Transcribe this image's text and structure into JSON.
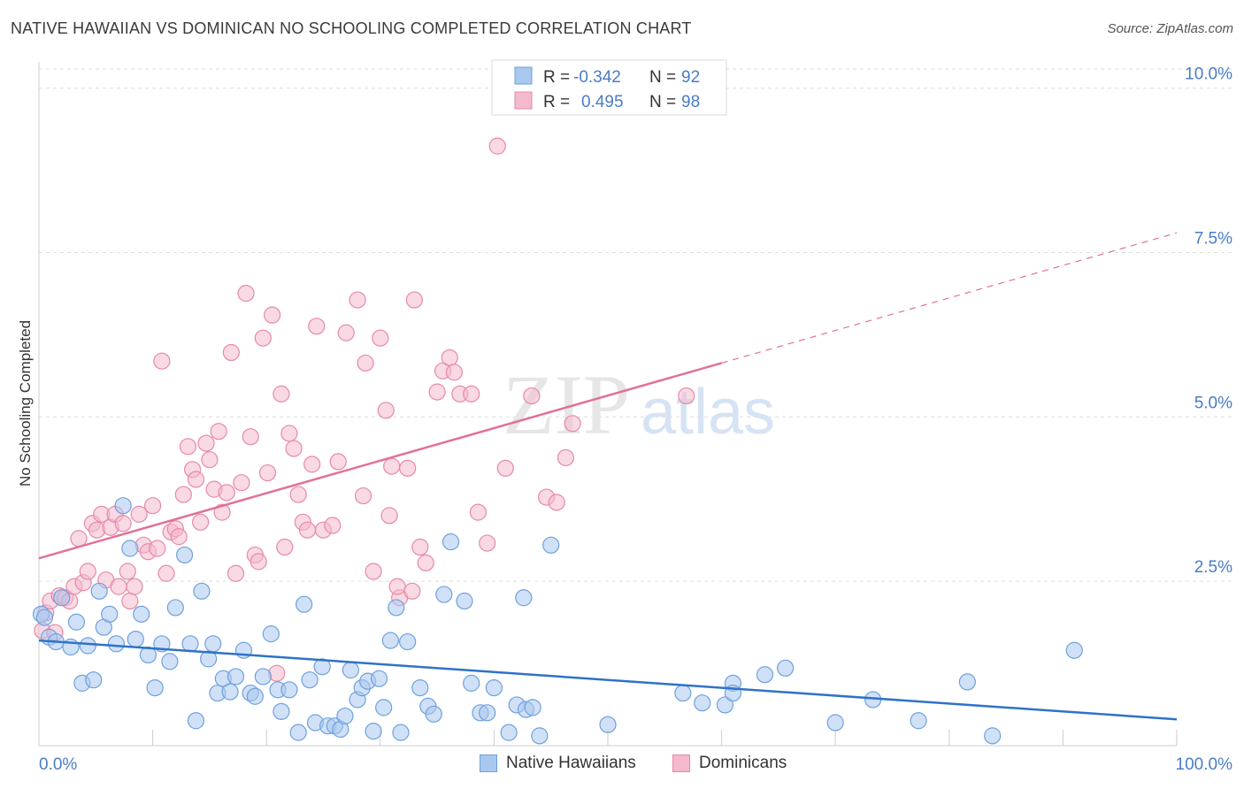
{
  "title": "NATIVE HAWAIIAN VS DOMINICAN NO SCHOOLING COMPLETED CORRELATION CHART",
  "source": "Source: ZipAtlas.com",
  "watermark": {
    "part1": "ZIP",
    "part2": "atlas"
  },
  "colors": {
    "blue_fill": "#a9c8f0",
    "blue_stroke": "#6fa0dd",
    "blue_line": "#2f72c9",
    "pink_fill": "#f4b9cc",
    "pink_stroke": "#e68aa8",
    "pink_line": "#e0719a",
    "axis_text": "#4a7cc7",
    "grid": "#dddddd"
  },
  "legend_top": [
    {
      "r_label": "R =",
      "r_value": "-0.342",
      "n_label": "N =",
      "n_value": "92"
    },
    {
      "r_label": "R =",
      "r_value": "0.495",
      "n_label": "N =",
      "n_value": "98"
    }
  ],
  "legend_bottom": [
    "Native Hawaiians",
    "Dominicans"
  ],
  "chart_data": {
    "type": "scatter",
    "title": "NATIVE HAWAIIAN VS DOMINICAN NO SCHOOLING COMPLETED CORRELATION CHART",
    "xlabel": "",
    "ylabel": "No Schooling Completed",
    "xlim": [
      0,
      100
    ],
    "ylim": [
      0,
      10.4
    ],
    "x_tick_labels": [
      "0.0%",
      "100.0%"
    ],
    "y_tick_values": [
      2.5,
      5.0,
      7.5,
      10.0
    ],
    "y_tick_labels": [
      "2.5%",
      "5.0%",
      "7.5%",
      "10.0%"
    ],
    "grid": "horizontal dashed",
    "series": [
      {
        "name": "Native Hawaiians",
        "trend": {
          "x": [
            0,
            100
          ],
          "y": [
            1.6,
            0.4
          ],
          "solid_until_x": 100
        },
        "points": [
          [
            0.2,
            2.0
          ],
          [
            0.5,
            1.95
          ],
          [
            0.9,
            1.65
          ],
          [
            1.5,
            1.58
          ],
          [
            2.0,
            2.25
          ],
          [
            2.8,
            1.5
          ],
          [
            3.3,
            1.88
          ],
          [
            3.8,
            0.95
          ],
          [
            4.3,
            1.52
          ],
          [
            4.8,
            1.0
          ],
          [
            5.3,
            2.35
          ],
          [
            5.7,
            1.8
          ],
          [
            6.2,
            2.0
          ],
          [
            6.8,
            1.55
          ],
          [
            7.4,
            3.65
          ],
          [
            8.0,
            3.0
          ],
          [
            8.5,
            1.62
          ],
          [
            9.0,
            2.0
          ],
          [
            9.6,
            1.38
          ],
          [
            10.2,
            0.88
          ],
          [
            10.8,
            1.55
          ],
          [
            11.5,
            1.28
          ],
          [
            12.0,
            2.1
          ],
          [
            12.8,
            2.9
          ],
          [
            13.3,
            1.55
          ],
          [
            13.8,
            0.38
          ],
          [
            14.3,
            2.35
          ],
          [
            14.9,
            1.32
          ],
          [
            15.3,
            1.55
          ],
          [
            15.7,
            0.8
          ],
          [
            16.2,
            1.02
          ],
          [
            16.8,
            0.82
          ],
          [
            17.3,
            1.05
          ],
          [
            18.0,
            1.45
          ],
          [
            18.6,
            0.8
          ],
          [
            19.0,
            0.75
          ],
          [
            19.7,
            1.05
          ],
          [
            20.4,
            1.7
          ],
          [
            21.0,
            0.85
          ],
          [
            21.3,
            0.52
          ],
          [
            22.0,
            0.85
          ],
          [
            22.8,
            0.2
          ],
          [
            23.3,
            2.15
          ],
          [
            23.8,
            1.0
          ],
          [
            24.3,
            0.35
          ],
          [
            24.9,
            1.2
          ],
          [
            25.4,
            0.3
          ],
          [
            26.0,
            0.3
          ],
          [
            26.5,
            0.25
          ],
          [
            26.9,
            0.45
          ],
          [
            27.4,
            1.15
          ],
          [
            28.0,
            0.7
          ],
          [
            28.4,
            0.88
          ],
          [
            28.9,
            0.98
          ],
          [
            29.4,
            0.22
          ],
          [
            29.9,
            1.02
          ],
          [
            30.3,
            0.58
          ],
          [
            30.9,
            1.6
          ],
          [
            31.4,
            2.1
          ],
          [
            31.8,
            0.2
          ],
          [
            32.4,
            1.58
          ],
          [
            33.5,
            0.88
          ],
          [
            34.2,
            0.6
          ],
          [
            34.7,
            0.48
          ],
          [
            35.6,
            2.3
          ],
          [
            36.2,
            3.1
          ],
          [
            37.4,
            2.2
          ],
          [
            38.0,
            0.95
          ],
          [
            38.8,
            0.5
          ],
          [
            39.4,
            0.5
          ],
          [
            40.0,
            0.88
          ],
          [
            41.3,
            0.2
          ],
          [
            42.0,
            0.62
          ],
          [
            42.6,
            2.25
          ],
          [
            42.8,
            0.55
          ],
          [
            43.4,
            0.58
          ],
          [
            44.0,
            0.15
          ],
          [
            45.0,
            3.05
          ],
          [
            50.0,
            0.32
          ],
          [
            56.6,
            0.8
          ],
          [
            58.3,
            0.65
          ],
          [
            60.3,
            0.62
          ],
          [
            61.0,
            0.95
          ],
          [
            61.0,
            0.8
          ],
          [
            63.8,
            1.08
          ],
          [
            65.6,
            1.18
          ],
          [
            70.0,
            0.35
          ],
          [
            73.3,
            0.7
          ],
          [
            77.3,
            0.38
          ],
          [
            81.6,
            0.97
          ],
          [
            83.8,
            0.15
          ],
          [
            91.0,
            1.45
          ]
        ]
      },
      {
        "name": "Dominicans",
        "trend": {
          "x": [
            0,
            100
          ],
          "y": [
            2.85,
            7.8
          ],
          "solid_until_x": 60
        },
        "points": [
          [
            0.3,
            1.75
          ],
          [
            0.6,
            2.02
          ],
          [
            1.0,
            2.2
          ],
          [
            1.4,
            1.72
          ],
          [
            1.8,
            2.28
          ],
          [
            2.3,
            2.25
          ],
          [
            2.7,
            2.2
          ],
          [
            3.1,
            2.42
          ],
          [
            3.5,
            3.15
          ],
          [
            3.9,
            2.48
          ],
          [
            4.3,
            2.65
          ],
          [
            4.7,
            3.38
          ],
          [
            5.1,
            3.28
          ],
          [
            5.5,
            3.52
          ],
          [
            5.9,
            2.52
          ],
          [
            6.3,
            3.32
          ],
          [
            6.7,
            3.52
          ],
          [
            7.0,
            2.42
          ],
          [
            7.4,
            3.38
          ],
          [
            7.8,
            2.65
          ],
          [
            8.0,
            2.2
          ],
          [
            8.4,
            2.42
          ],
          [
            8.8,
            3.52
          ],
          [
            9.2,
            3.05
          ],
          [
            9.6,
            2.95
          ],
          [
            10.0,
            3.65
          ],
          [
            10.4,
            3.0
          ],
          [
            10.8,
            5.85
          ],
          [
            11.2,
            2.62
          ],
          [
            11.6,
            3.25
          ],
          [
            12.0,
            3.3
          ],
          [
            12.3,
            3.18
          ],
          [
            12.7,
            3.82
          ],
          [
            13.1,
            4.55
          ],
          [
            13.5,
            4.2
          ],
          [
            13.8,
            4.05
          ],
          [
            14.2,
            3.4
          ],
          [
            14.7,
            4.6
          ],
          [
            15.0,
            4.35
          ],
          [
            15.4,
            3.9
          ],
          [
            15.8,
            4.78
          ],
          [
            16.1,
            3.55
          ],
          [
            16.5,
            3.85
          ],
          [
            16.9,
            5.98
          ],
          [
            17.3,
            2.62
          ],
          [
            17.8,
            4.0
          ],
          [
            18.2,
            6.88
          ],
          [
            18.6,
            4.7
          ],
          [
            19.0,
            2.9
          ],
          [
            19.3,
            2.8
          ],
          [
            19.7,
            6.2
          ],
          [
            20.1,
            4.15
          ],
          [
            20.5,
            6.55
          ],
          [
            20.9,
            1.1
          ],
          [
            21.3,
            5.35
          ],
          [
            21.6,
            3.02
          ],
          [
            22.0,
            4.75
          ],
          [
            22.4,
            4.52
          ],
          [
            22.8,
            3.82
          ],
          [
            23.2,
            3.4
          ],
          [
            23.6,
            3.28
          ],
          [
            24.0,
            4.28
          ],
          [
            24.4,
            6.38
          ],
          [
            25.0,
            3.28
          ],
          [
            26.3,
            4.32
          ],
          [
            27.0,
            6.28
          ],
          [
            28.0,
            6.78
          ],
          [
            28.7,
            5.82
          ],
          [
            29.4,
            2.65
          ],
          [
            30.0,
            6.2
          ],
          [
            30.5,
            5.1
          ],
          [
            31.0,
            4.25
          ],
          [
            31.7,
            2.25
          ],
          [
            32.4,
            4.22
          ],
          [
            33.0,
            6.78
          ],
          [
            33.5,
            3.02
          ],
          [
            34.0,
            2.78
          ],
          [
            35.0,
            5.38
          ],
          [
            35.5,
            5.7
          ],
          [
            36.1,
            5.9
          ],
          [
            36.5,
            5.68
          ],
          [
            37.0,
            5.35
          ],
          [
            38.0,
            5.35
          ],
          [
            38.6,
            3.55
          ],
          [
            39.4,
            3.08
          ],
          [
            40.3,
            9.12
          ],
          [
            41.0,
            4.22
          ],
          [
            43.3,
            5.32
          ],
          [
            44.6,
            3.78
          ],
          [
            45.5,
            3.7
          ],
          [
            46.3,
            4.38
          ],
          [
            46.9,
            4.9
          ],
          [
            56.9,
            5.32
          ],
          [
            30.8,
            3.5
          ],
          [
            28.5,
            3.8
          ],
          [
            31.5,
            2.42
          ],
          [
            25.8,
            3.35
          ],
          [
            32.8,
            2.35
          ]
        ]
      }
    ]
  }
}
